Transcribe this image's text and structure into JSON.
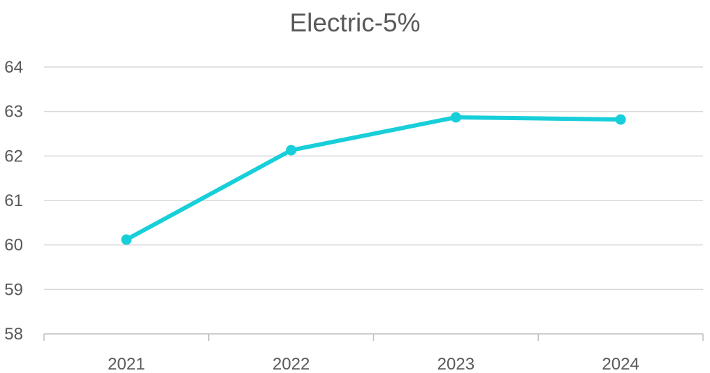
{
  "chart_data": {
    "type": "line",
    "title": "Electric-5%",
    "categories": [
      "2021",
      "2022",
      "2023",
      "2024"
    ],
    "series": [
      {
        "values": [
          60.12,
          62.13,
          62.87,
          62.82
        ]
      }
    ],
    "ylim": [
      58,
      64
    ],
    "yticks": [
      58,
      59,
      60,
      61,
      62,
      63,
      64
    ],
    "grid": true,
    "colors": {
      "series": "#17cfd9",
      "grid": "#d9d9d9",
      "text": "#595959",
      "axis": "#bfbfbf"
    }
  }
}
